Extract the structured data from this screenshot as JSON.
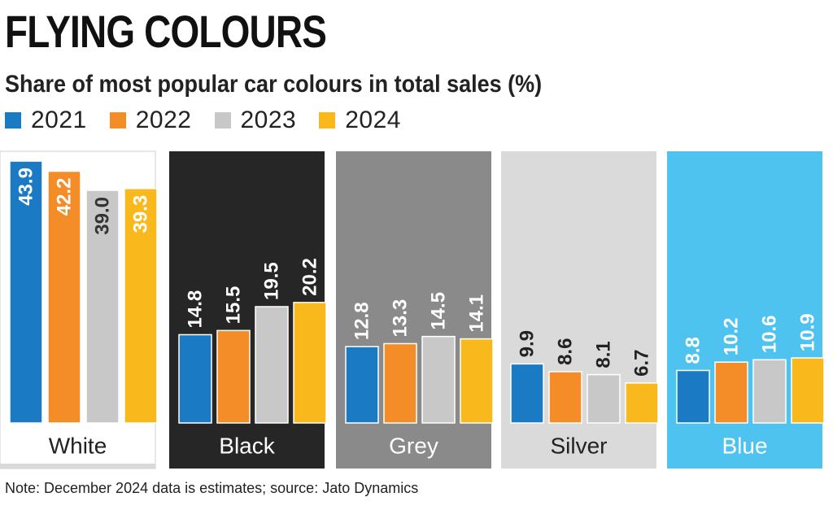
{
  "title": "FLYING COLOURS",
  "subtitle": "Share of most popular car colours in total sales (%)",
  "legend": [
    {
      "label": "2021",
      "color": "#1a7bc4"
    },
    {
      "label": "2022",
      "color": "#f48d28"
    },
    {
      "label": "2023",
      "color": "#c8c8c8"
    },
    {
      "label": "2024",
      "color": "#f9b81b"
    }
  ],
  "note": "Note: December 2024 data is estimates; source: Jato Dynamics",
  "chart_data": {
    "type": "bar",
    "categories": [
      "White",
      "Black",
      "Grey",
      "Silver",
      "Blue"
    ],
    "series": [
      {
        "name": "2021",
        "values": [
          43.9,
          14.8,
          12.8,
          9.9,
          8.8
        ]
      },
      {
        "name": "2022",
        "values": [
          42.2,
          15.5,
          13.3,
          8.6,
          10.2
        ]
      },
      {
        "name": "2023",
        "values": [
          39.0,
          19.5,
          14.5,
          8.1,
          10.6
        ]
      },
      {
        "name": "2024",
        "values": [
          39.3,
          20.2,
          14.1,
          6.7,
          10.9
        ]
      }
    ],
    "panel_colors": [
      "#ffffff",
      "#262626",
      "#8a8a8a",
      "#dadada",
      "#4fc3f0"
    ],
    "label_colors": [
      "#222222",
      "#ffffff",
      "#ffffff",
      "#222222",
      "#ffffff"
    ],
    "ylim": [
      0,
      45
    ],
    "grid": false
  }
}
